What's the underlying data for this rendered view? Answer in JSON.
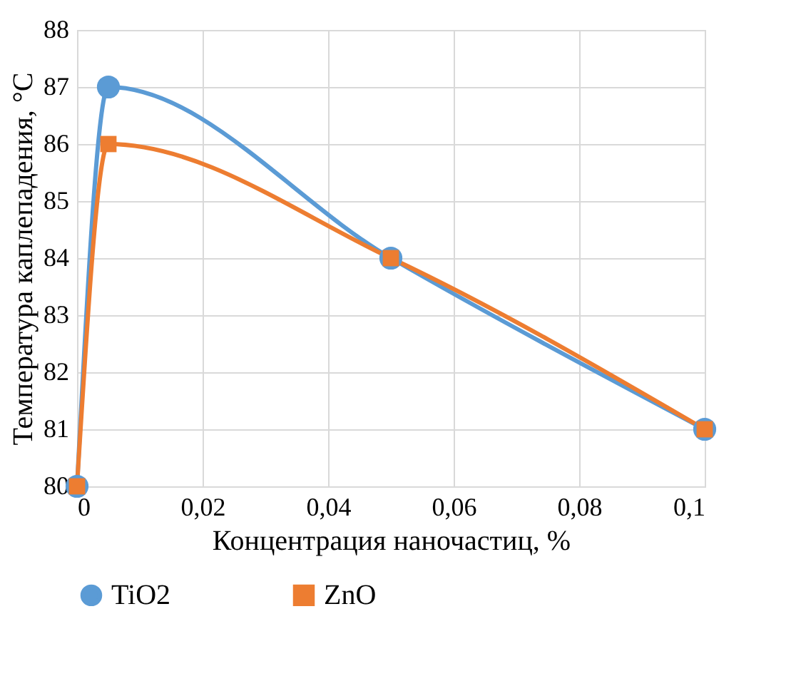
{
  "chart_data": {
    "type": "line",
    "xlabel": "Концентрация наночастиц, %",
    "ylabel": "Температура каплепадения, °С",
    "xlim": [
      0,
      0.1
    ],
    "xticks": [
      0,
      {
        "value": 0.02,
        "label": "0,02"
      },
      {
        "value": 0.04,
        "label": "0,04"
      },
      {
        "value": 0.06,
        "label": "0,06"
      },
      {
        "value": 0.08,
        "label": "0,08"
      },
      {
        "value": 0.1,
        "label": "0,1"
      }
    ],
    "ylim": [
      80,
      88
    ],
    "yticks": [
      80,
      81,
      82,
      83,
      84,
      85,
      86,
      87,
      88
    ],
    "grid": true,
    "legend": "bottom",
    "series": [
      {
        "name": "TiO2",
        "color": "#5b9bd5",
        "marker": "circle",
        "x": [
          0,
          0.005,
          0.05,
          0.1
        ],
        "values": [
          80,
          87,
          84,
          81
        ]
      },
      {
        "name": "ZnO",
        "color": "#ed7d31",
        "marker": "square",
        "x": [
          0,
          0.005,
          0.05,
          0.1
        ],
        "values": [
          80,
          86,
          84,
          81
        ]
      }
    ]
  }
}
